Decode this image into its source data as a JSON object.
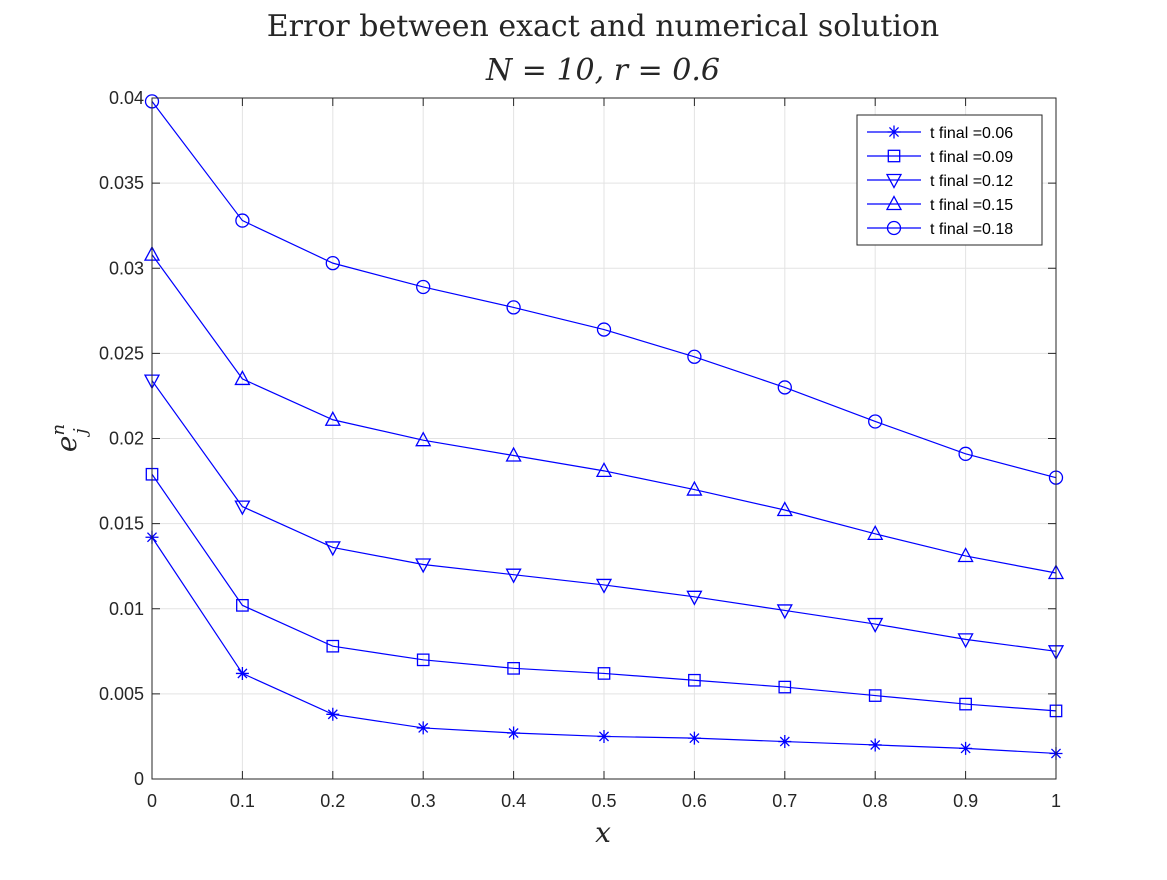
{
  "chart_data": {
    "type": "line",
    "title_line1": "Error between exact and numerical solution",
    "title_line2": "N = 10, r = 0.6",
    "xlabel": "x",
    "ylabel_base": "e",
    "ylabel_sup": "n",
    "ylabel_sub": "j",
    "xlim": [
      0,
      1
    ],
    "ylim": [
      0,
      0.04
    ],
    "xticks": [
      "0",
      "0.1",
      "0.2",
      "0.3",
      "0.4",
      "0.5",
      "0.6",
      "0.7",
      "0.8",
      "0.9",
      "1"
    ],
    "yticks": [
      "0",
      "0.005",
      "0.01",
      "0.015",
      "0.02",
      "0.025",
      "0.03",
      "0.035",
      "0.04"
    ],
    "grid": true,
    "legend_position": "top-right",
    "line_color": "#0000ff",
    "x": [
      0,
      0.1,
      0.2,
      0.3,
      0.4,
      0.5,
      0.6,
      0.7,
      0.8,
      0.9,
      1.0
    ],
    "series": [
      {
        "name": "t final =0.06",
        "marker": "asterisk",
        "values": [
          0.0142,
          0.0062,
          0.0038,
          0.003,
          0.0027,
          0.0025,
          0.0024,
          0.0022,
          0.002,
          0.0018,
          0.0015
        ]
      },
      {
        "name": "t final =0.09",
        "marker": "square",
        "values": [
          0.0179,
          0.0102,
          0.0078,
          0.007,
          0.0065,
          0.0062,
          0.0058,
          0.0054,
          0.0049,
          0.0044,
          0.004
        ]
      },
      {
        "name": "t final =0.12",
        "marker": "triangle-down",
        "values": [
          0.0234,
          0.016,
          0.0136,
          0.0126,
          0.012,
          0.0114,
          0.0107,
          0.0099,
          0.0091,
          0.0082,
          0.0075
        ]
      },
      {
        "name": "t final =0.15",
        "marker": "triangle-up",
        "values": [
          0.0308,
          0.0235,
          0.0211,
          0.0199,
          0.019,
          0.0181,
          0.017,
          0.0158,
          0.0144,
          0.0131,
          0.0121
        ]
      },
      {
        "name": "t final =0.18",
        "marker": "circle",
        "values": [
          0.0398,
          0.0328,
          0.0303,
          0.0289,
          0.0277,
          0.0264,
          0.0248,
          0.023,
          0.021,
          0.0191,
          0.0177
        ]
      }
    ]
  }
}
